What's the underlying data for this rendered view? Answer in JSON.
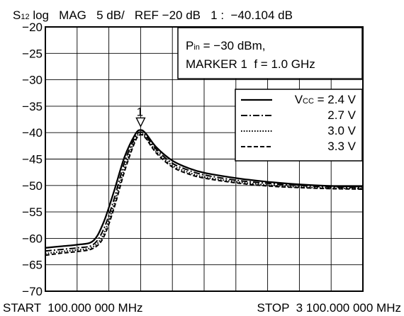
{
  "header": {
    "param_main": "S",
    "param_sub": "12",
    "format": " log   MAG   5 dB/   REF −20 dB   1 :  −40.104 dB"
  },
  "footer": {
    "start": "START  100.000 000 MHz",
    "stop": "STOP  3 100.000 000 MHz"
  },
  "conditions": {
    "pin_main": "P",
    "pin_sub": "in",
    "pin_value": " = −30 dBm,",
    "marker_line": "MARKER 1  f = 1.0 GHz"
  },
  "legend": {
    "vcc_main": "V",
    "vcc_sub": "CC",
    "vcc_eq": " = 2.4 V"
  },
  "marker": {
    "label": "1",
    "x": 1000,
    "y": -39.5
  },
  "chart_data": {
    "type": "line",
    "x_unit": "MHz",
    "xlim": [
      100,
      3100
    ],
    "ylim": [
      -70,
      -20
    ],
    "y_ticks": [
      -20,
      -25,
      -30,
      -35,
      -40,
      -45,
      -50,
      -55,
      -60,
      -65,
      -70
    ],
    "y_tick_labels": [
      "−20",
      "−25",
      "−30",
      "−35",
      "−40",
      "−45",
      "−50",
      "−55",
      "−60",
      "−65",
      "−70"
    ],
    "grid": true,
    "legend_position": "top-right",
    "series": [
      {
        "name": "",
        "legend_label": "2.4 V",
        "style": "solid",
        "x": [
          100,
          250,
          400,
          550,
          650,
          750,
          850,
          950,
          1000,
          1050,
          1150,
          1300,
          1450,
          1600,
          1900,
          2200,
          2500,
          2800,
          3100
        ],
        "y": [
          -61.8,
          -61.5,
          -61.2,
          -60.5,
          -57,
          -51,
          -44.5,
          -40.3,
          -39.5,
          -40.2,
          -42.8,
          -45.3,
          -46.7,
          -47.6,
          -48.6,
          -49.3,
          -49.8,
          -50.1,
          -50.2
        ]
      },
      {
        "name": "2.7 V",
        "legend_label": "2.7 V",
        "style": "dashdot",
        "x": [
          100,
          250,
          400,
          550,
          650,
          750,
          850,
          950,
          1000,
          1050,
          1150,
          1300,
          1450,
          1600,
          1900,
          2200,
          2500,
          2800,
          3100
        ],
        "y": [
          -62.4,
          -62.1,
          -61.8,
          -61.2,
          -58.3,
          -52.5,
          -45.5,
          -40.8,
          -39.9,
          -40.6,
          -43.2,
          -45.8,
          -47.1,
          -48.0,
          -49.0,
          -49.6,
          -50.0,
          -50.3,
          -50.4
        ]
      },
      {
        "name": "3.0 V",
        "legend_label": "3.0 V",
        "style": "dotted",
        "x": [
          100,
          250,
          400,
          550,
          650,
          750,
          850,
          950,
          1000,
          1050,
          1150,
          1300,
          1450,
          1600,
          1900,
          2200,
          2500,
          2800,
          3100
        ],
        "y": [
          -62.9,
          -62.5,
          -62.2,
          -61.6,
          -59.2,
          -53.5,
          -46.5,
          -41.2,
          -40.2,
          -40.9,
          -43.6,
          -46.2,
          -47.5,
          -48.4,
          -49.3,
          -49.9,
          -50.3,
          -50.5,
          -50.6
        ]
      },
      {
        "name": "3.3 V",
        "legend_label": "3.3 V",
        "style": "dashed",
        "x": [
          100,
          250,
          400,
          550,
          650,
          750,
          850,
          950,
          1000,
          1050,
          1150,
          1300,
          1450,
          1600,
          1900,
          2200,
          2500,
          2800,
          3100
        ],
        "y": [
          -63.2,
          -62.8,
          -62.5,
          -61.9,
          -59.8,
          -54.2,
          -47.2,
          -41.6,
          -40.4,
          -41.1,
          -43.9,
          -46.5,
          -47.8,
          -48.6,
          -49.5,
          -50.1,
          -50.4,
          -50.6,
          -50.7
        ]
      }
    ]
  }
}
